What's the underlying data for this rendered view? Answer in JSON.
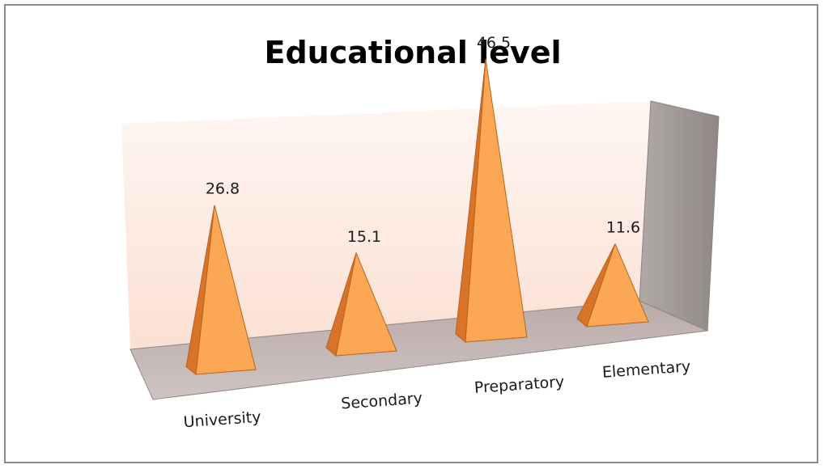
{
  "chart_data": {
    "type": "bar",
    "style": "3d-pyramid",
    "title": "Educational  level",
    "categories": [
      "University",
      "Secondary",
      "Preparatory",
      "Elementary"
    ],
    "values": [
      26.8,
      15.1,
      46.5,
      11.6
    ],
    "ylim": [
      0,
      50
    ],
    "grid": false,
    "legend": "none",
    "colors": {
      "pyramid_light": "#fca754",
      "pyramid_dark": "#d9732a",
      "pyramid_edge": "#b8621f",
      "back_wall": "#fde9e1",
      "floor": "#c2b5b3",
      "side_wall": "#a19a97"
    }
  }
}
